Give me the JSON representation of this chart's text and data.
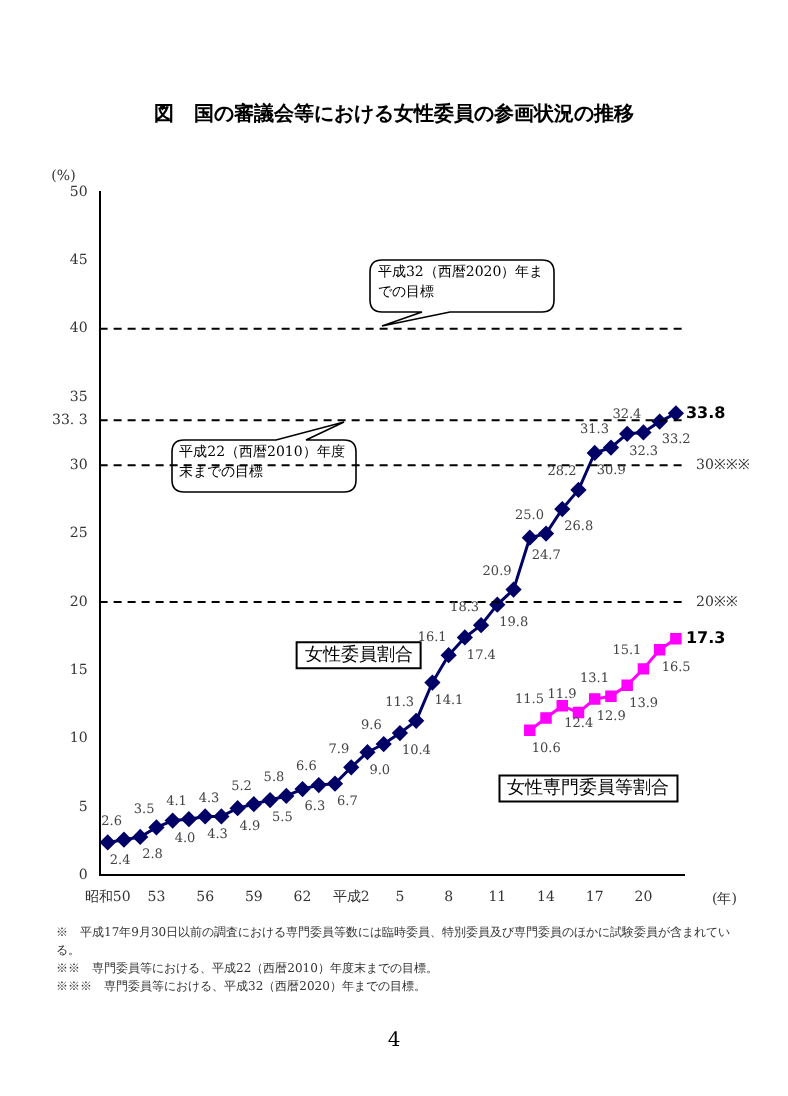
{
  "chart_data": {
    "type": "line",
    "title": "図　国の審議会等における女性委員の参画状況の推移",
    "ylabel": "(%)",
    "xlabel": "(年)",
    "categories": [
      "昭和50",
      null,
      null,
      "53",
      null,
      null,
      "56",
      null,
      null,
      "59",
      null,
      null,
      "62",
      null,
      null,
      "平成2",
      null,
      null,
      "5",
      null,
      null,
      "8",
      null,
      null,
      "11",
      null,
      null,
      "14",
      null,
      null,
      "17",
      null,
      null,
      "20",
      null,
      null
    ],
    "series": [
      {
        "name": "女性委員割合",
        "color": "#000066",
        "marker": "diamond",
        "values": [
          2.4,
          2.6,
          2.8,
          3.5,
          4.0,
          4.1,
          4.3,
          4.3,
          4.9,
          5.2,
          5.5,
          5.8,
          6.3,
          6.6,
          6.7,
          7.9,
          9.0,
          9.6,
          10.4,
          11.3,
          14.1,
          16.1,
          17.4,
          18.3,
          19.8,
          20.9,
          24.7,
          25.0,
          26.8,
          28.2,
          30.9,
          31.3,
          32.3,
          32.4,
          33.2,
          33.8
        ],
        "value_labels": [
          "2.4",
          "2.6",
          "2.8",
          "3.5",
          "4.0",
          "4.1",
          "4.3",
          "4.3",
          "4.9",
          "5.2",
          "5.5",
          "5.8",
          "6.3",
          "6.6",
          "6.7",
          "7.9",
          "9.0",
          "9.6",
          "10.4",
          "11.3",
          "14.1",
          "16.1",
          "17.4",
          "18.3",
          "19.8",
          "20.9",
          "24.7",
          "25.0",
          "26.8",
          "28.2",
          "30.9",
          "31.3",
          "32.3",
          "32.4",
          "33.2",
          "33.8"
        ]
      },
      {
        "name": "女性専門委員等割合",
        "color": "#ff00ff",
        "marker": "square",
        "values": [
          null,
          null,
          null,
          null,
          null,
          null,
          null,
          null,
          null,
          null,
          null,
          null,
          null,
          null,
          null,
          null,
          null,
          null,
          null,
          null,
          null,
          null,
          null,
          null,
          null,
          null,
          10.6,
          11.5,
          12.4,
          11.9,
          12.9,
          13.1,
          13.9,
          15.1,
          16.5,
          17.3
        ],
        "value_labels": [
          null,
          null,
          null,
          null,
          null,
          null,
          null,
          null,
          null,
          null,
          null,
          null,
          null,
          null,
          null,
          null,
          null,
          null,
          null,
          null,
          null,
          null,
          null,
          null,
          null,
          null,
          "10.6",
          "11.5",
          "12.4",
          "11.9",
          "12.9",
          "13.1",
          "13.9",
          "15.1",
          "16.5",
          "17.3"
        ]
      }
    ],
    "ylim": [
      0,
      50
    ],
    "yticks": [
      0,
      5,
      10,
      15,
      20,
      25,
      30,
      {
        "value": 33.3,
        "label": "33. 3"
      },
      35,
      40,
      45,
      50
    ],
    "grid": false,
    "legend": false,
    "line_style": "solid",
    "ref_lines": [
      {
        "axis": "y",
        "value": 40,
        "label": "平成32（西暦2020）年までの目標",
        "line_style": "dashed"
      },
      {
        "axis": "y",
        "value": 33.3,
        "label": "平成22（西暦2010）年度末までの目標",
        "line_style": "dashed"
      },
      {
        "axis": "y",
        "value": 30,
        "label": "30※※※",
        "line_style": "dashed"
      },
      {
        "axis": "y",
        "value": 20,
        "label": "20※※",
        "line_style": "dashed"
      }
    ],
    "annotations": [
      "※　平成17年9月30日以前の調査における専門委員等数には臨時委員、特別委員及び専門委員のほかに試験委員が含まれている。",
      "※※　専門委員等における、平成22（西暦2010）年度末までの目標。",
      "※※※　専門委員等における、平成32（西暦2020）年までの目標。",
      "4"
    ]
  }
}
